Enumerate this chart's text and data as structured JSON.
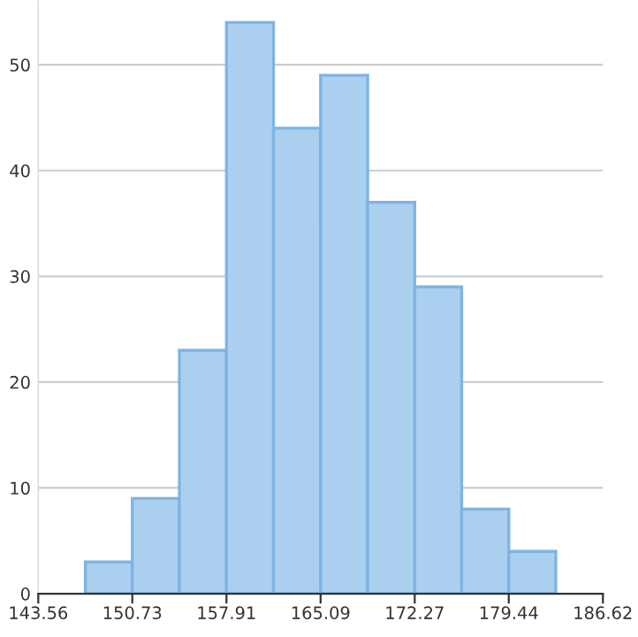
{
  "chart_data": {
    "type": "histogram",
    "bins": [
      147.15,
      150.73,
      154.32,
      157.91,
      161.5,
      165.09,
      168.68,
      172.27,
      175.85,
      179.44,
      183.03
    ],
    "values": [
      3,
      9,
      23,
      54,
      44,
      49,
      37,
      29,
      8,
      4
    ],
    "color": "#abcfee",
    "xlim": [
      143.56,
      186.62
    ],
    "xticks": [
      143.56,
      150.73,
      157.91,
      165.09,
      172.27,
      179.44,
      186.62
    ],
    "ylim": [
      0,
      56
    ],
    "yticks": [
      0,
      10,
      20,
      30,
      40,
      50
    ],
    "grid": "y",
    "legend": false
  }
}
